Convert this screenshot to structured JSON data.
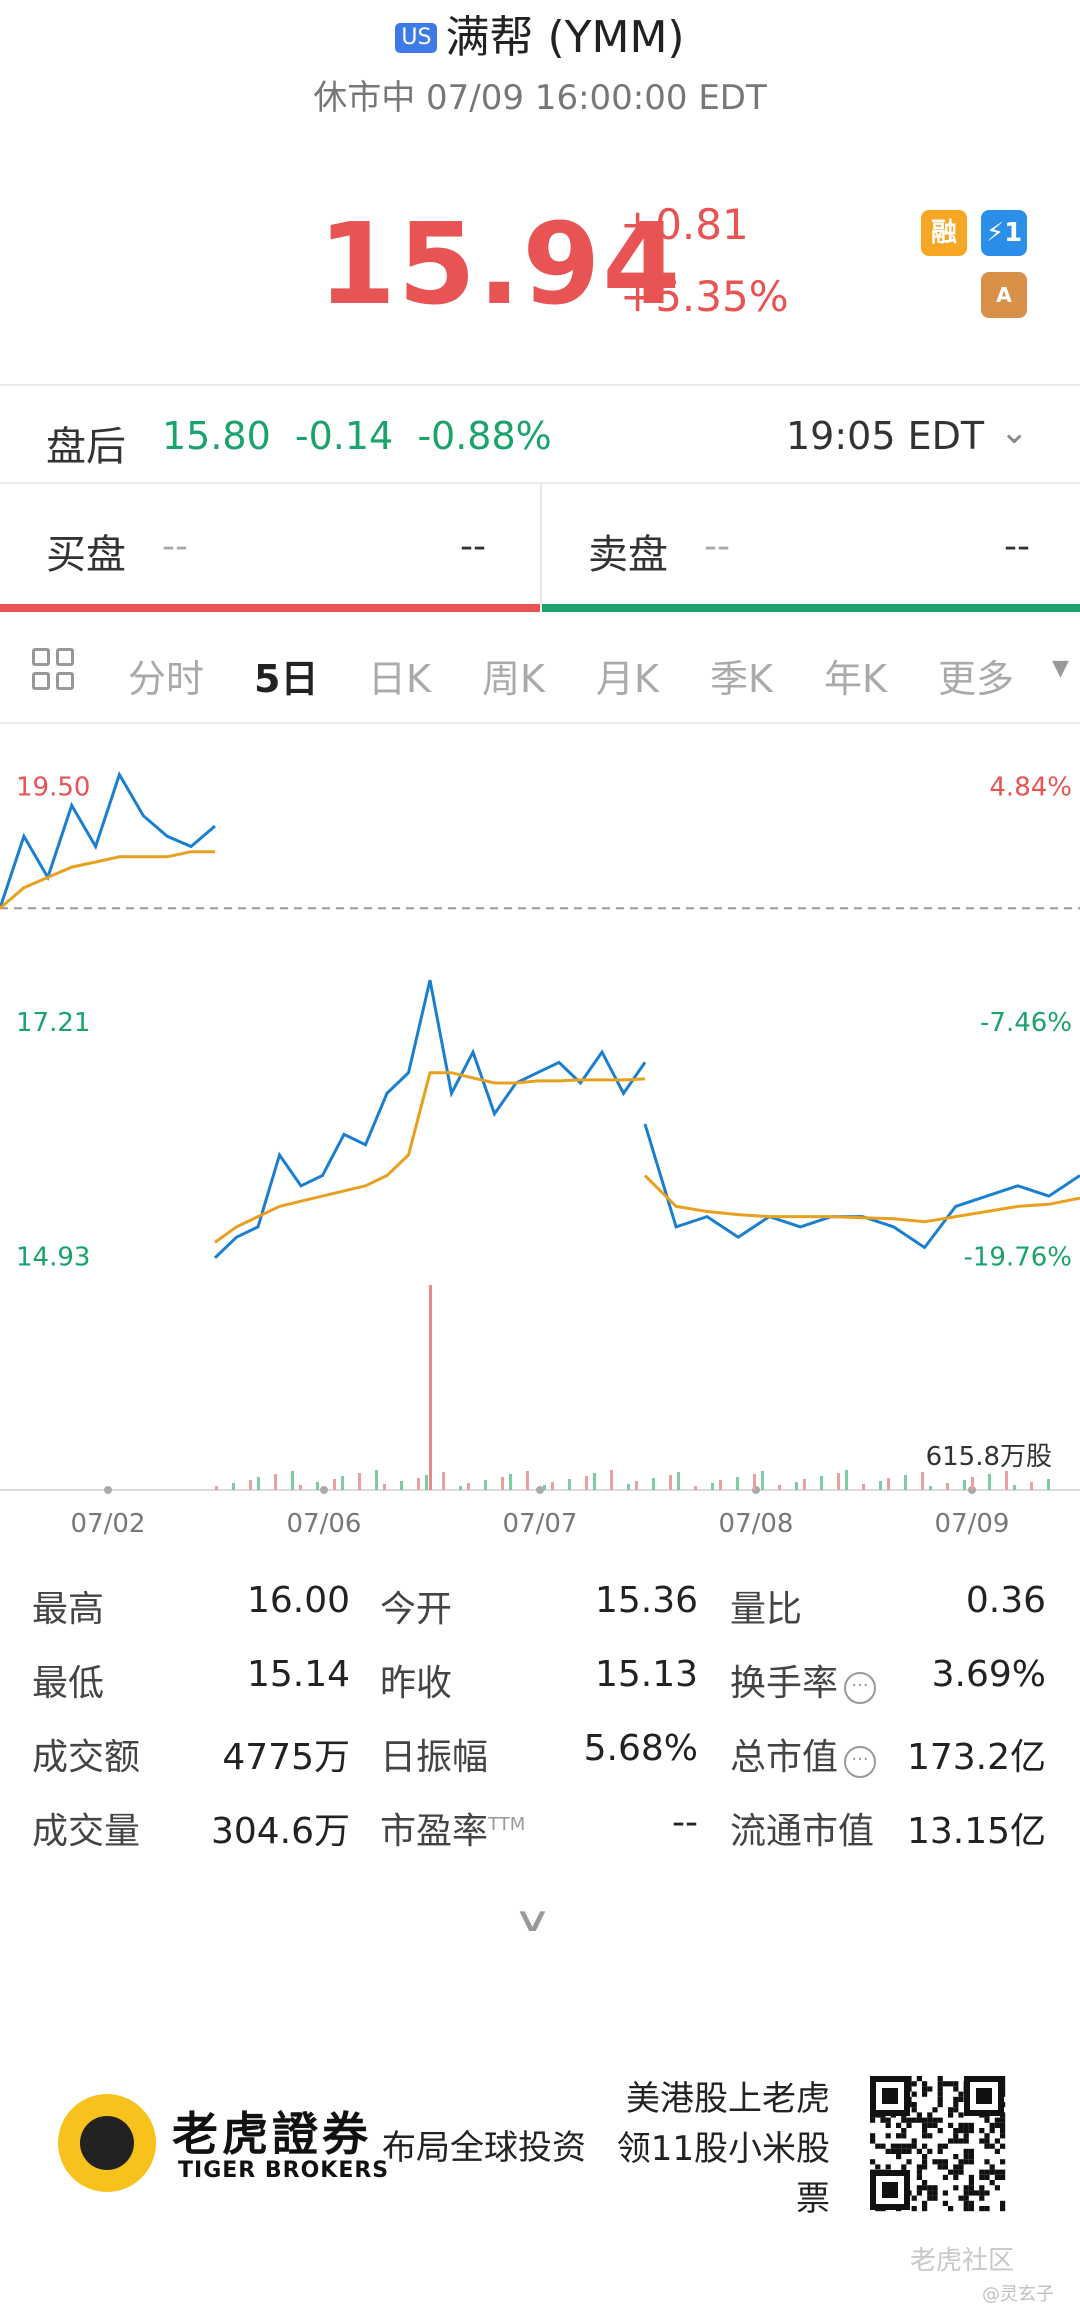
{
  "header": {
    "market_badge": "US",
    "title": "满帮 (YMM)",
    "status_line": "休市中 07/09 16:00:00 EDT"
  },
  "quote": {
    "price": "15.94",
    "change": "+0.81",
    "change_pct": "+5.35%",
    "color_up": "#e85353",
    "color_down": "#1aa36b"
  },
  "badges": [
    {
      "name": "margin",
      "text": "融"
    },
    {
      "name": "lightning",
      "text": "⚡1"
    },
    {
      "name": "layers",
      "text": "A"
    }
  ],
  "after_hours": {
    "label": "盘后",
    "price": "15.80",
    "change": "-0.14",
    "change_pct": "-0.88%",
    "time": "19:05 EDT"
  },
  "order_book": {
    "bid_label": "买盘",
    "bid_price": "--",
    "bid_size": "--",
    "ask_label": "卖盘",
    "ask_price": "--",
    "ask_size": "--"
  },
  "tabs": [
    "分时",
    "5日",
    "日K",
    "周K",
    "月K",
    "季K",
    "年K",
    "更多"
  ],
  "active_tab": "5日",
  "chart_data": {
    "type": "line",
    "x_labels": [
      "07/02",
      "07/06",
      "07/07",
      "07/08",
      "07/09"
    ],
    "y_left_ticks": [
      "19.50",
      "17.21",
      "14.93"
    ],
    "y_right_ticks": [
      "4.84%",
      "-7.46%",
      "-19.76%"
    ],
    "reference_close": 18.6,
    "volume_label": "615.8万股",
    "series": [
      {
        "color": "#1a7fd1",
        "values": [
          18.6,
          19.3,
          18.9,
          19.6,
          19.2,
          19.9,
          19.5,
          19.3,
          19.2,
          19.4
        ],
        "day": 0
      },
      {
        "color": "#e8a020",
        "values": [
          18.6,
          18.8,
          18.9,
          19.0,
          19.05,
          19.1,
          19.1,
          19.1,
          19.15,
          19.15
        ],
        "day": 0
      },
      {
        "color": "#1a7fd1",
        "values": [
          15.2,
          15.4,
          15.5,
          16.2,
          15.9,
          16.0,
          16.4,
          16.3,
          16.8,
          17.0,
          17.9,
          16.8,
          17.2,
          16.6,
          16.9,
          17.0,
          17.1,
          16.9,
          17.2,
          16.8,
          17.1
        ],
        "day": 1
      },
      {
        "color": "#e8a020",
        "values": [
          15.35,
          15.5,
          15.6,
          15.7,
          15.75,
          15.8,
          15.85,
          15.9,
          16.0,
          16.2,
          17.0,
          17.0,
          16.95,
          16.9,
          16.9,
          16.92,
          16.92,
          16.93,
          16.93,
          16.93,
          16.94
        ],
        "day": 1
      },
      {
        "color": "#1a7fd1",
        "values": [
          16.5,
          15.5,
          15.6,
          15.4,
          15.6,
          15.5,
          15.6,
          15.6,
          15.5,
          15.3,
          15.7,
          15.8,
          15.9,
          15.8,
          16.0
        ],
        "day": 2
      },
      {
        "color": "#e8a020",
        "values": [
          16.0,
          15.7,
          15.65,
          15.62,
          15.6,
          15.6,
          15.6,
          15.59,
          15.58,
          15.55,
          15.6,
          15.65,
          15.7,
          15.72,
          15.78
        ],
        "day": 2
      }
    ]
  },
  "stats": [
    {
      "label": "最高",
      "value": "16.00"
    },
    {
      "label": "今开",
      "value": "15.36"
    },
    {
      "label": "量比",
      "value": "0.36"
    },
    {
      "label": "最低",
      "value": "15.14"
    },
    {
      "label": "昨收",
      "value": "15.13"
    },
    {
      "label": "换手率",
      "value": "3.69%",
      "info": true
    },
    {
      "label": "成交额",
      "value": "4775万"
    },
    {
      "label": "日振幅",
      "value": "5.68%"
    },
    {
      "label": "总市值",
      "value": "173.2亿",
      "info": true
    },
    {
      "label": "成交量",
      "value": "304.6万"
    },
    {
      "label": "市盈率",
      "sup": "TTM",
      "value": "--"
    },
    {
      "label": "流通市值",
      "value": "13.15亿"
    }
  ],
  "footer": {
    "brand_cn": "老虎證券",
    "brand_en": "TIGER BROKERS",
    "slogan_left": "布局全球投资",
    "slogan_right": "美港股上老虎 领11股小米股票",
    "watermark": "老虎社区",
    "watermark_user": "@灵玄子"
  }
}
